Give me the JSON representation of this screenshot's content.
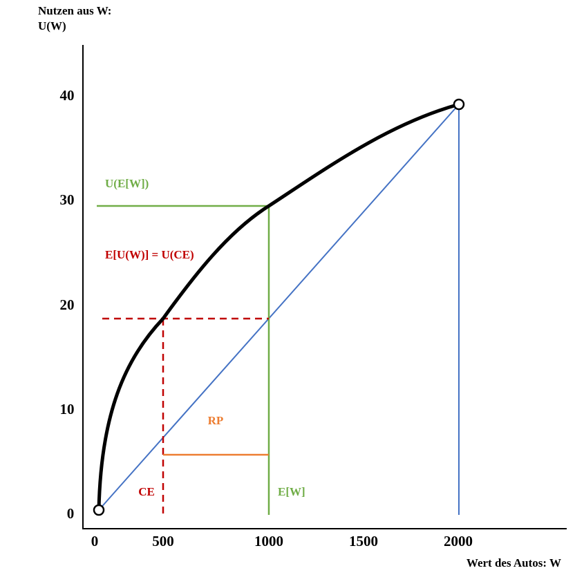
{
  "y_axis_title": {
    "line1": "Nutzen aus W:",
    "line2": "U(W)"
  },
  "x_axis_title": "Wert des Autos: W",
  "y_tick_labels": [
    "40",
    "30",
    "20",
    "10",
    "0"
  ],
  "x_tick_labels": [
    "0",
    "500",
    "1000",
    "1500",
    "2000"
  ],
  "annotations": {
    "u_ew": "U(E[W])",
    "eu_ce": "E[U(W)] = U(CE)",
    "rp": "RP",
    "ce": "CE",
    "ew": "E[W]"
  }
}
